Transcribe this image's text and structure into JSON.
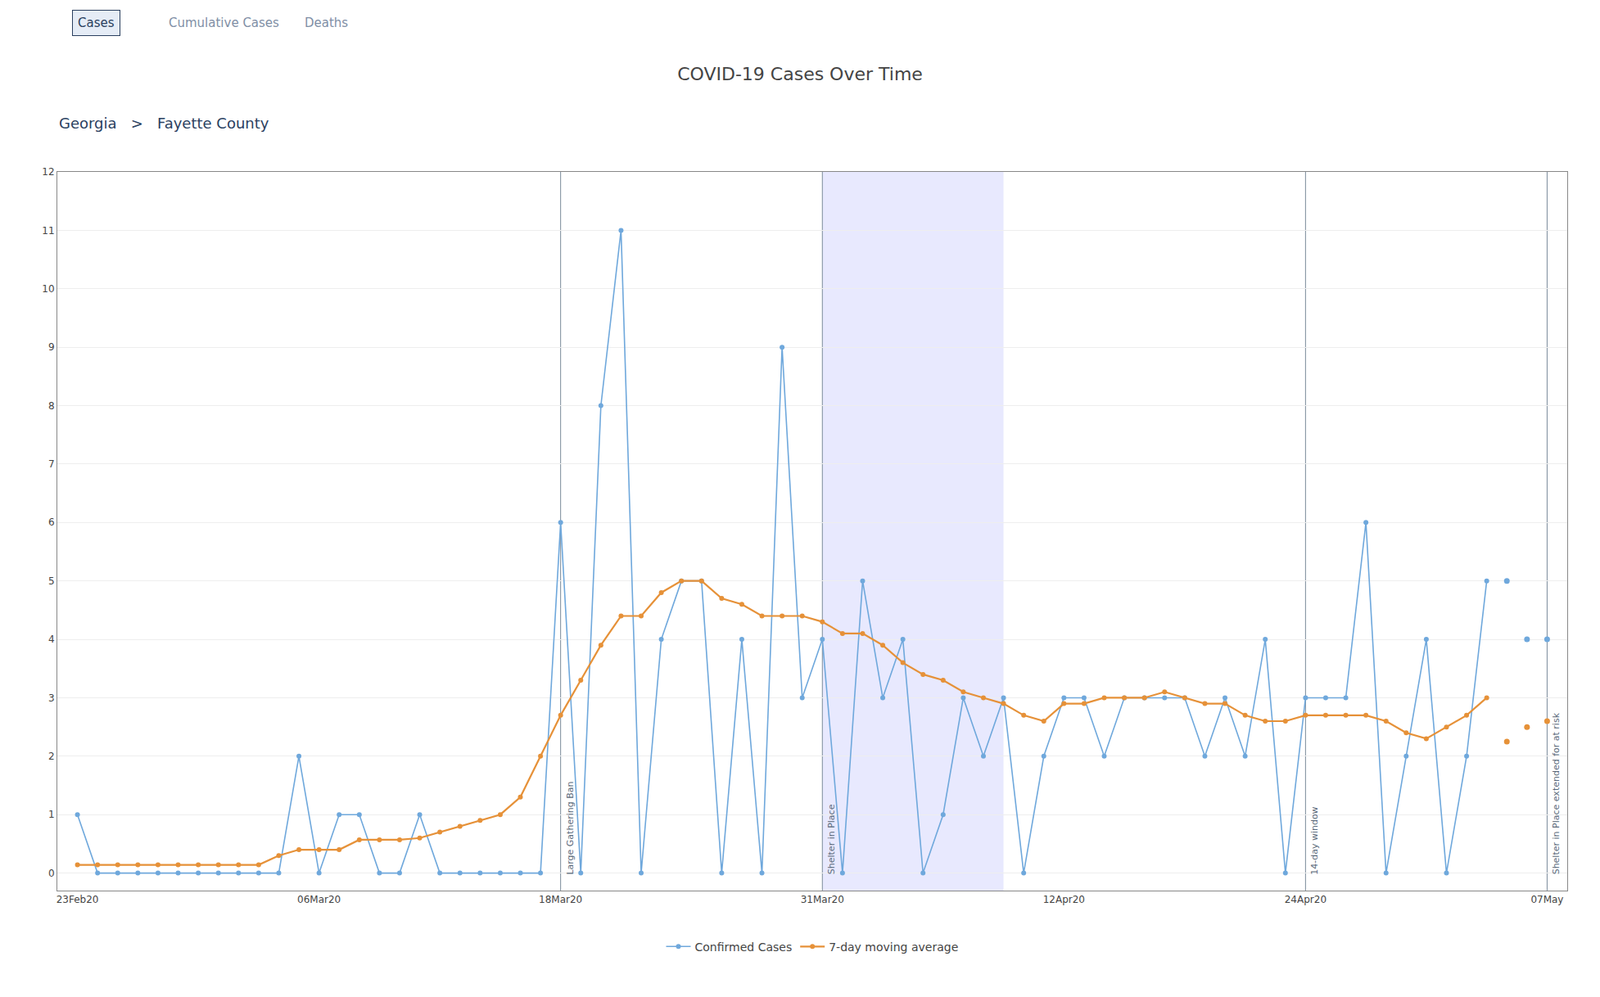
{
  "chart_data": {
    "type": "line",
    "title": "COVID-19 Cases Over Time",
    "subtitle": "Georgia   >   Fayette County",
    "tabs": [
      "Cases",
      "Cumulative Cases",
      "Deaths"
    ],
    "xlim": [
      -1,
      74
    ],
    "xticks": [
      {
        "value": 0,
        "label": "23Feb20"
      },
      {
        "value": 12,
        "label": "06Mar20"
      },
      {
        "value": 24,
        "label": "18Mar20"
      },
      {
        "value": 37,
        "label": "31Mar20"
      },
      {
        "value": 49,
        "label": "12Apr20"
      },
      {
        "value": 61,
        "label": "24Apr20"
      },
      {
        "value": 73,
        "label": "07May"
      }
    ],
    "ylim": [
      -0.3,
      12
    ],
    "yticks": [
      0,
      1,
      2,
      3,
      4,
      5,
      6,
      7,
      8,
      9,
      10,
      11,
      12
    ],
    "grid": "y",
    "legend": "bottom",
    "series": [
      {
        "name": "Confirmed Cases",
        "type": "line",
        "marker": "circle",
        "color": "#6fa8dc",
        "x": [
          0,
          1,
          2,
          3,
          4,
          5,
          6,
          7,
          8,
          9,
          10,
          11,
          12,
          13,
          14,
          15,
          16,
          17,
          18,
          19,
          20,
          21,
          22,
          23,
          24,
          25,
          26,
          27,
          28,
          29,
          30,
          31,
          32,
          33,
          34,
          35,
          36,
          37,
          38,
          39,
          40,
          41,
          42,
          43,
          44,
          45,
          46,
          47,
          48,
          49,
          50,
          51,
          52,
          53,
          54,
          55,
          56,
          57,
          58,
          59,
          60,
          61,
          62,
          63,
          64,
          65,
          66,
          67,
          68,
          69,
          70
        ],
        "values": [
          1,
          0,
          0,
          0,
          0,
          0,
          0,
          0,
          0,
          0,
          0,
          2,
          0,
          1,
          1,
          0,
          0,
          1,
          0,
          0,
          0,
          0,
          0,
          0,
          6,
          0,
          8,
          11,
          0,
          4,
          5,
          5,
          0,
          4,
          0,
          9,
          3,
          4,
          0,
          5,
          3,
          4,
          0,
          1,
          3,
          2,
          3,
          0,
          2,
          3,
          3,
          2,
          3,
          3,
          3,
          3,
          2,
          3,
          2,
          4,
          0,
          3,
          3,
          3,
          6,
          0,
          2,
          4,
          0,
          2,
          5
        ]
      },
      {
        "name": "Confirmed Cases",
        "type": "scatter",
        "marker": "circle",
        "color": "#6fa8dc",
        "x": [
          71,
          72,
          73
        ],
        "values": [
          5,
          4,
          4
        ]
      },
      {
        "name": "7-day moving average",
        "type": "line",
        "marker": "circle",
        "color": "#e69138",
        "x": [
          0,
          1,
          2,
          3,
          4,
          5,
          6,
          7,
          8,
          9,
          10,
          11,
          12,
          13,
          14,
          15,
          16,
          17,
          18,
          19,
          20,
          21,
          22,
          23,
          24,
          25,
          26,
          27,
          28,
          29,
          30,
          31,
          32,
          33,
          34,
          35,
          36,
          37,
          38,
          39,
          40,
          41,
          42,
          43,
          44,
          45,
          46,
          47,
          48,
          49,
          50,
          51,
          52,
          53,
          54,
          55,
          56,
          57,
          58,
          59,
          60,
          61,
          62,
          63,
          64,
          65,
          66,
          67,
          68,
          69,
          70
        ],
        "values": [
          0.14,
          0.14,
          0.14,
          0.14,
          0.14,
          0.14,
          0.14,
          0.14,
          0.14,
          0.14,
          0.3,
          0.4,
          0.4,
          0.4,
          0.57,
          0.57,
          0.57,
          0.6,
          0.7,
          0.8,
          0.9,
          1.0,
          1.3,
          2.0,
          2.7,
          3.3,
          3.9,
          4.4,
          4.4,
          4.8,
          5.0,
          5.0,
          4.7,
          4.6,
          4.4,
          4.4,
          4.4,
          4.3,
          4.1,
          4.1,
          3.9,
          3.6,
          3.4,
          3.3,
          3.1,
          3.0,
          2.9,
          2.7,
          2.6,
          2.9,
          2.9,
          3.0,
          3.0,
          3.0,
          3.1,
          3.0,
          2.9,
          2.9,
          2.7,
          2.6,
          2.6,
          2.7,
          2.7,
          2.7,
          2.7,
          2.6,
          2.4,
          2.3,
          2.5,
          2.7,
          3.0
        ]
      },
      {
        "name": "7-day moving average",
        "type": "scatter",
        "marker": "circle",
        "color": "#e69138",
        "x": [
          71,
          72,
          73
        ],
        "values": [
          2.25,
          2.5,
          2.6
        ]
      }
    ],
    "shaded_region": [
      37,
      46
    ],
    "annotations": [
      {
        "x": 24,
        "text": "Large Gathering Ban"
      },
      {
        "x": 37,
        "text": "Shelter in Place"
      },
      {
        "x": 61,
        "text": "14-day window"
      },
      {
        "x": 73,
        "text": "Shelter in Place extended for at risk"
      }
    ]
  }
}
